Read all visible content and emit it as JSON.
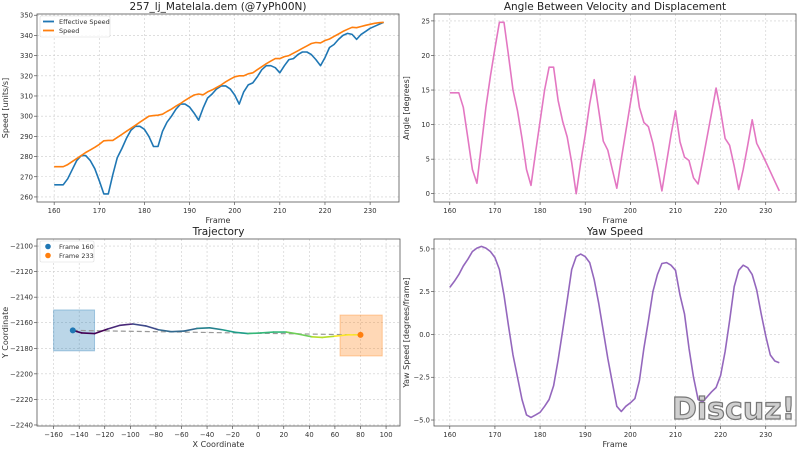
{
  "watermark": "Discuz!",
  "chart_data": [
    {
      "type": "line",
      "title": "257_lj_Matelala.dem (@7yPh00N)",
      "xlabel": "Frame",
      "ylabel": "Speed [units/s]",
      "xlim": [
        156.2,
        236.4
      ],
      "ylim": [
        257.5,
        350.6
      ],
      "xticks": [
        160,
        170,
        180,
        190,
        200,
        210,
        220,
        230
      ],
      "yticks": [
        260,
        270,
        280,
        290,
        300,
        310,
        320,
        330,
        340,
        350
      ],
      "grid": true,
      "legend": "top-left",
      "x_start": 160,
      "series": [
        {
          "name": "Effective Speed",
          "color": "#1f77b4",
          "values": [
            266,
            266,
            266,
            269,
            273.5,
            278,
            280.5,
            280.5,
            278,
            274,
            268,
            261.5,
            261.5,
            271,
            279.5,
            284,
            289,
            293,
            295,
            295,
            293.5,
            290,
            285,
            285,
            292.5,
            297,
            300,
            303.5,
            306,
            306,
            304.5,
            301.5,
            298,
            304,
            309,
            311,
            313.5,
            315,
            315,
            313.5,
            310.5,
            306,
            312,
            315.5,
            316.5,
            319.5,
            323,
            325,
            325,
            324,
            321.5,
            325,
            328,
            328.5,
            330.5,
            331.8,
            331.8,
            330.5,
            328,
            325,
            329,
            334,
            335.5,
            338,
            340,
            341,
            340.5,
            338,
            340.5,
            342,
            343.5,
            344.5,
            345.5,
            346.5
          ]
        },
        {
          "name": "Speed",
          "color": "#ff7f0e",
          "values": [
            275,
            275,
            275,
            276,
            277.5,
            279,
            280.5,
            282,
            283.3,
            284.6,
            286,
            287.8,
            288,
            288,
            289.5,
            291,
            292.5,
            294,
            295.5,
            297,
            298.5,
            300,
            300.3,
            300.5,
            301,
            302.3,
            303.5,
            305,
            306.3,
            307.8,
            309.2,
            310.5,
            311,
            310.6,
            312,
            313,
            314.2,
            315.5,
            317,
            318.3,
            319.5,
            320,
            320,
            321,
            321.5,
            323,
            324.5,
            326,
            327.3,
            328.5,
            328.5,
            329.5,
            330,
            331.2,
            332.4,
            333.6,
            334.8,
            336,
            336.5,
            336.3,
            337.5,
            338.2,
            339.5,
            340.7,
            342,
            343,
            344,
            343.8,
            344.4,
            345,
            345.5,
            346,
            346.3,
            346.5
          ]
        }
      ]
    },
    {
      "type": "line",
      "title": "Angle Between Velocity and Displacement",
      "xlabel": "Frame",
      "ylabel": "Angle [degrees]",
      "xlim": [
        156.5,
        236.7
      ],
      "ylim": [
        -1.2,
        26
      ],
      "xticks": [
        160,
        170,
        180,
        190,
        200,
        210,
        220,
        230
      ],
      "yticks": [
        0,
        5,
        10,
        15,
        20,
        25
      ],
      "grid": true,
      "x_start": 160,
      "series": [
        {
          "color": "#e377c2",
          "values": [
            14.6,
            14.6,
            14.6,
            12.5,
            8,
            3.5,
            1.5,
            7,
            12.5,
            17,
            21,
            24.8,
            24.8,
            20,
            15,
            12,
            8,
            3.5,
            1.2,
            6,
            10.5,
            15,
            18.3,
            18.3,
            13.5,
            10.5,
            8.2,
            4.5,
            0,
            4.5,
            8.5,
            13,
            16.5,
            12,
            7.6,
            6.3,
            3.5,
            0.8,
            5,
            9,
            13,
            17,
            12.5,
            10.3,
            9.7,
            7.3,
            4,
            0.4,
            4.5,
            8.5,
            12,
            7.5,
            5.3,
            4.8,
            2.3,
            1.4,
            4.7,
            8.2,
            11.7,
            15.3,
            12,
            8,
            7,
            4,
            0.6,
            3.5,
            7,
            10.7,
            7.3,
            6,
            4.6,
            3.2,
            1.8,
            0.4
          ]
        }
      ]
    },
    {
      "type": "line",
      "title": "Trajectory",
      "xlabel": "X Coordinate",
      "ylabel": "Y Coordinate",
      "xlim": [
        -173,
        110.9
      ],
      "ylim": [
        -2240.8,
        -2094.5
      ],
      "xticks": [
        -160,
        -140,
        -120,
        -100,
        -80,
        -60,
        -40,
        -20,
        0,
        20,
        40,
        60,
        80,
        100
      ],
      "yticks": [
        -2240,
        -2220,
        -2200,
        -2180,
        -2160,
        -2140,
        -2120,
        -2100
      ],
      "grid": true,
      "legend": "top-left",
      "colormap": "viridis",
      "path": {
        "x": [
          -145,
          -138,
          -128,
          -118,
          -108,
          -98,
          -88,
          -78,
          -68,
          -58,
          -48,
          -38,
          -28,
          -18,
          -8,
          2,
          12,
          22,
          32,
          42,
          50,
          60,
          70,
          80
        ],
        "y": [
          -2166,
          -2168,
          -2168.5,
          -2165,
          -2162,
          -2161,
          -2162.5,
          -2165.5,
          -2167,
          -2166.5,
          -2164.5,
          -2164,
          -2165.5,
          -2167.5,
          -2168.5,
          -2168,
          -2167.3,
          -2167.3,
          -2169,
          -2171,
          -2171.5,
          -2170.5,
          -2169.5,
          -2169.5
        ]
      },
      "displacement_line": {
        "x": [
          -145,
          80
        ],
        "y": [
          -2166,
          -2169.5
        ],
        "color": "#999999"
      },
      "markers": [
        {
          "name": "Frame 160",
          "x": -145,
          "y": -2166,
          "color": "#1f77b4"
        },
        {
          "name": "Frame 233",
          "x": 80,
          "y": -2169.5,
          "color": "#ff7f0e"
        }
      ],
      "regions": [
        {
          "x": [
            -160,
            -128
          ],
          "y": [
            -2182,
            -2150
          ],
          "color": "#1f77b4"
        },
        {
          "x": [
            64,
            97
          ],
          "y": [
            -2186,
            -2154
          ],
          "color": "#ff7f0e"
        }
      ]
    },
    {
      "type": "line",
      "title": "Yaw Speed",
      "xlabel": "Frame",
      "ylabel": "Yaw Speed [degrees/frame]",
      "xlim": [
        156.5,
        236.7
      ],
      "ylim": [
        -5.35,
        5.58
      ],
      "xticks": [
        160,
        170,
        180,
        190,
        200,
        210,
        220,
        230
      ],
      "yticks": [
        "-5.0",
        "-2.5",
        "0.0",
        "2.5",
        "5.0"
      ],
      "grid": true,
      "x_start": 160,
      "series": [
        {
          "color": "#9467bd",
          "values": [
            2.75,
            3.1,
            3.5,
            4.0,
            4.4,
            4.85,
            5.05,
            5.15,
            5.05,
            4.85,
            4.5,
            3.8,
            2.3,
            0.5,
            -1.2,
            -2.5,
            -3.8,
            -4.7,
            -4.85,
            -4.7,
            -4.55,
            -4.2,
            -3.8,
            -3.0,
            -1.5,
            0.2,
            2.0,
            3.8,
            4.55,
            4.7,
            4.55,
            4.2,
            3.2,
            1.8,
            0.2,
            -1.4,
            -2.8,
            -4.2,
            -4.5,
            -4.2,
            -4.0,
            -3.75,
            -2.7,
            -0.8,
            0.8,
            2.5,
            3.5,
            4.15,
            4.2,
            4.05,
            3.75,
            2.3,
            1.2,
            -0.8,
            -2.5,
            -3.8,
            -3.95,
            -3.65,
            -3.35,
            -3.1,
            -2.4,
            -1,
            0.8,
            2.8,
            3.75,
            4.05,
            3.9,
            3.5,
            2.6,
            1.2,
            -0.1,
            -1.2,
            -1.55,
            -1.65
          ]
        }
      ]
    }
  ]
}
